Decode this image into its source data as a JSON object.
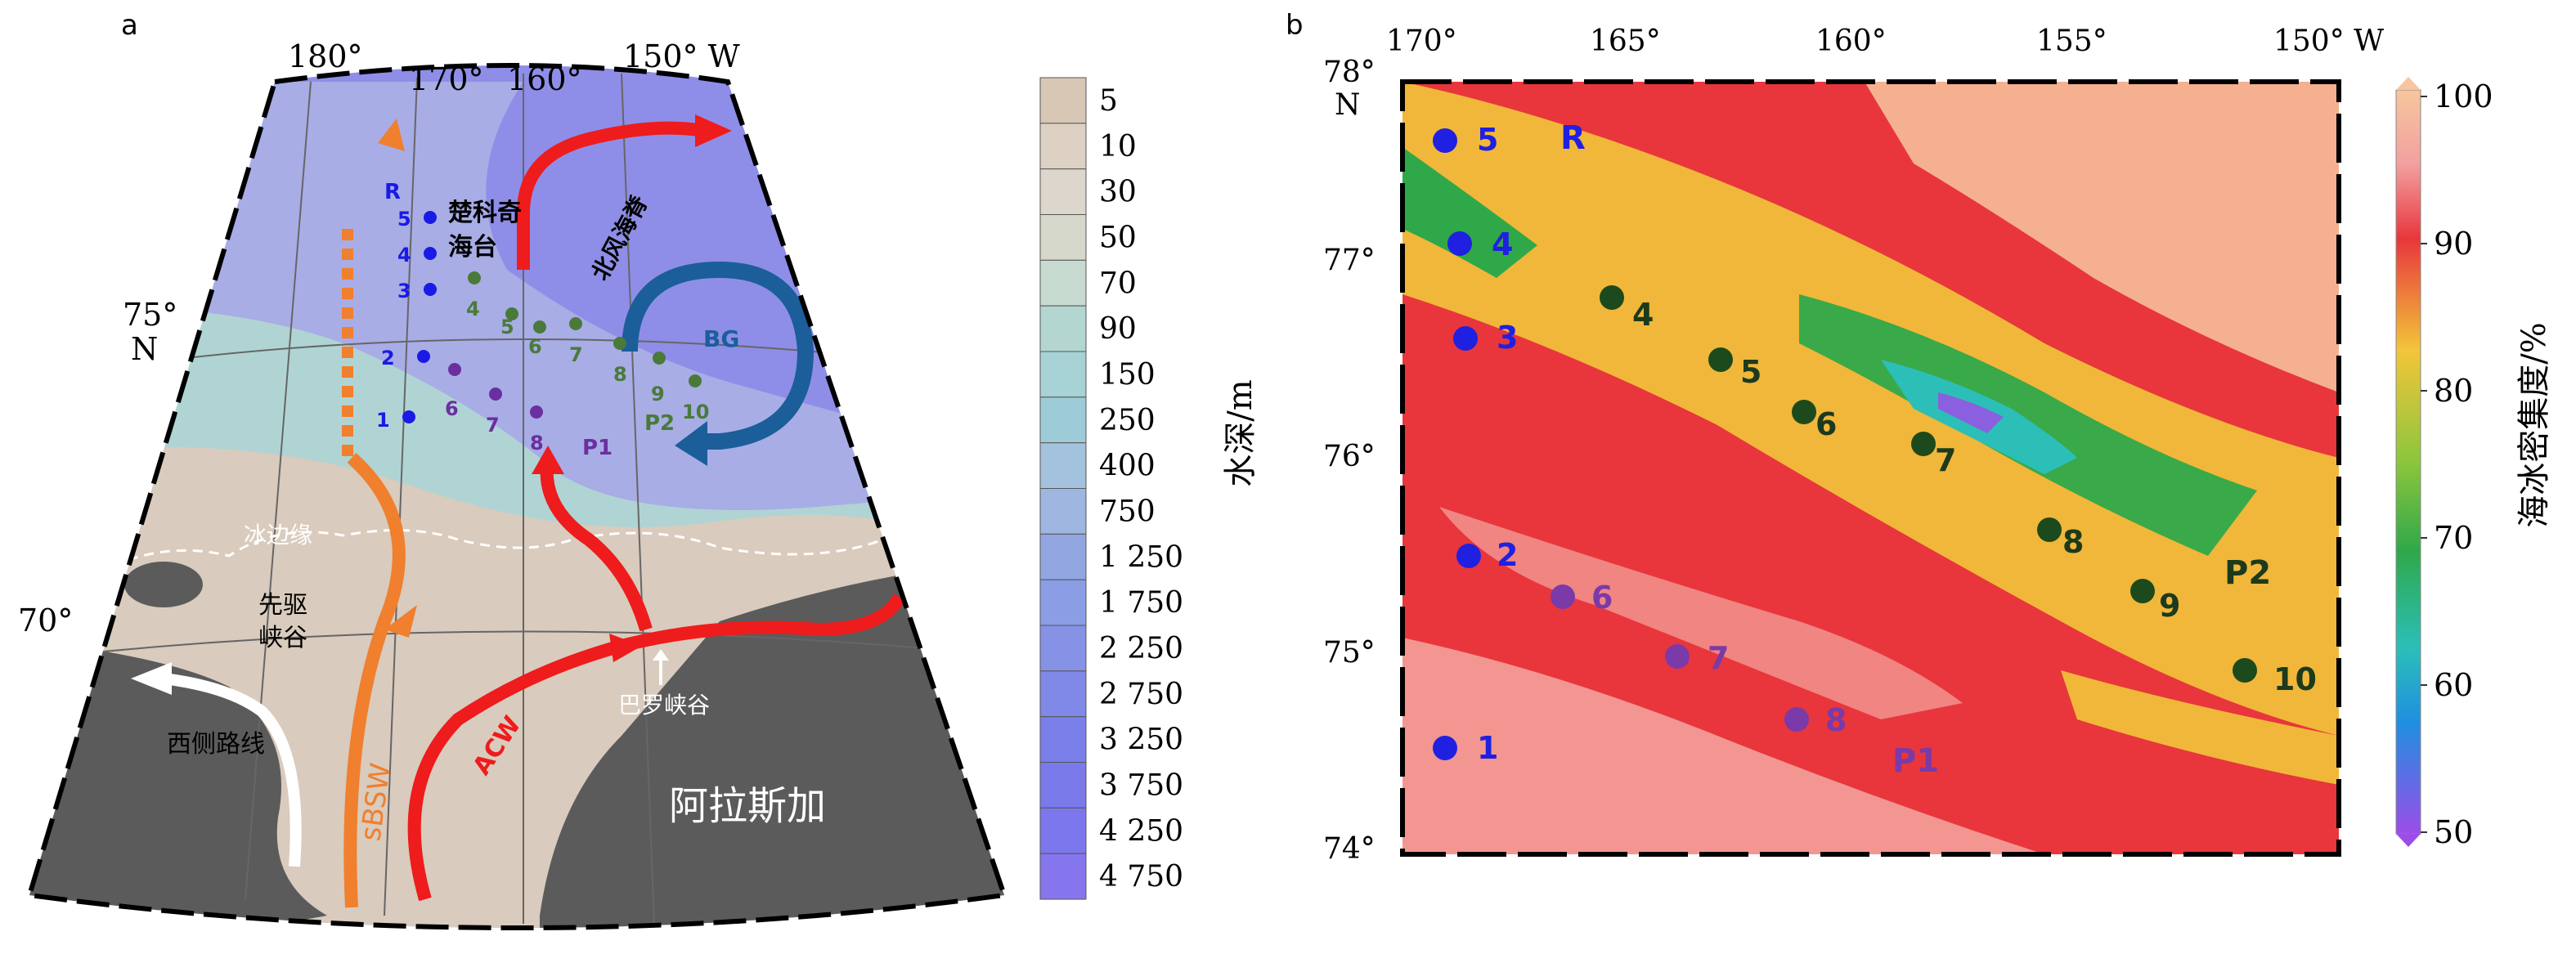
{
  "panel_a": {
    "label": "a",
    "lon_labels": [
      "180°",
      "170°",
      "160°",
      "150° W"
    ],
    "lat_labels": [
      "75°",
      "N",
      "70°"
    ],
    "regions": {
      "chukchi_plateau": [
        "楚科奇",
        "海台"
      ],
      "northwind_ridge": "北风海脊",
      "ice_edge": "冰边缘",
      "herald_canyon": [
        "先驱",
        "峡谷"
      ],
      "western_route": "西侧路线",
      "barrow_canyon": "巴罗峡谷",
      "alaska": "阿拉斯加"
    },
    "currents": {
      "bg": "BG",
      "sbsw": "sBSW",
      "acw": "ACW"
    },
    "stations": {
      "R": {
        "label": "R",
        "color": "#1a1ae6",
        "points": [
          "5",
          "4",
          "3",
          "2",
          "1"
        ]
      },
      "P1": {
        "label": "P1",
        "color": "#6b2fa0",
        "points": [
          "6",
          "7",
          "8"
        ]
      },
      "P2": {
        "label": "P2",
        "color": "#4a7a3a",
        "points": [
          "4",
          "5",
          "6",
          "7",
          "8",
          "9",
          "10"
        ]
      }
    },
    "colorbar": {
      "title": "水深/m",
      "ticks": [
        "5",
        "10",
        "30",
        "50",
        "70",
        "90",
        "150",
        "250",
        "400",
        "750",
        "1 250",
        "1 750",
        "2 250",
        "2 750",
        "3 250",
        "3 750",
        "4 250",
        "4 750"
      ],
      "colors": [
        "#d9c7b6",
        "#ddd1c4",
        "#ddd6cc",
        "#d7d8cc",
        "#c7dbd0",
        "#b3d6d1",
        "#a7d2d6",
        "#9ecbd8",
        "#a3c2dd",
        "#9fb6e0",
        "#92a6e2",
        "#8b9de4",
        "#8592e6",
        "#8088e8",
        "#7b7fea",
        "#7a7aeb",
        "#7d77ed",
        "#8676ee"
      ]
    }
  },
  "panel_b": {
    "label": "b",
    "lon_labels": [
      "170°",
      "165°",
      "160°",
      "155°",
      "150° W"
    ],
    "lat_labels": [
      "78°",
      "N",
      "77°",
      "76°",
      "75°",
      "74°"
    ],
    "group_labels": {
      "R": "R",
      "P1": "P1",
      "P2": "P2"
    },
    "stations": {
      "R": {
        "color": "#2020e0",
        "text_color": "#2020e0",
        "points": [
          "5",
          "4",
          "3",
          "2",
          "1"
        ]
      },
      "P1": {
        "color": "#7a3aa8",
        "text_color": "#7a3aa8",
        "points": [
          "6",
          "7",
          "8"
        ]
      },
      "P2": {
        "color": "#1c4a1c",
        "text_color": "#1c3a1c",
        "points": [
          "4",
          "5",
          "6",
          "7",
          "8",
          "9",
          "10"
        ]
      }
    },
    "colorbar": {
      "title": "海冰密集度/%",
      "ticks": [
        "100",
        "90",
        "80",
        "70",
        "60",
        "50"
      ],
      "colors": [
        "#f7c69e",
        "#e8363c",
        "#f2c53a",
        "#2fa84a",
        "#1f8fe0",
        "#9b4de8"
      ]
    }
  }
}
